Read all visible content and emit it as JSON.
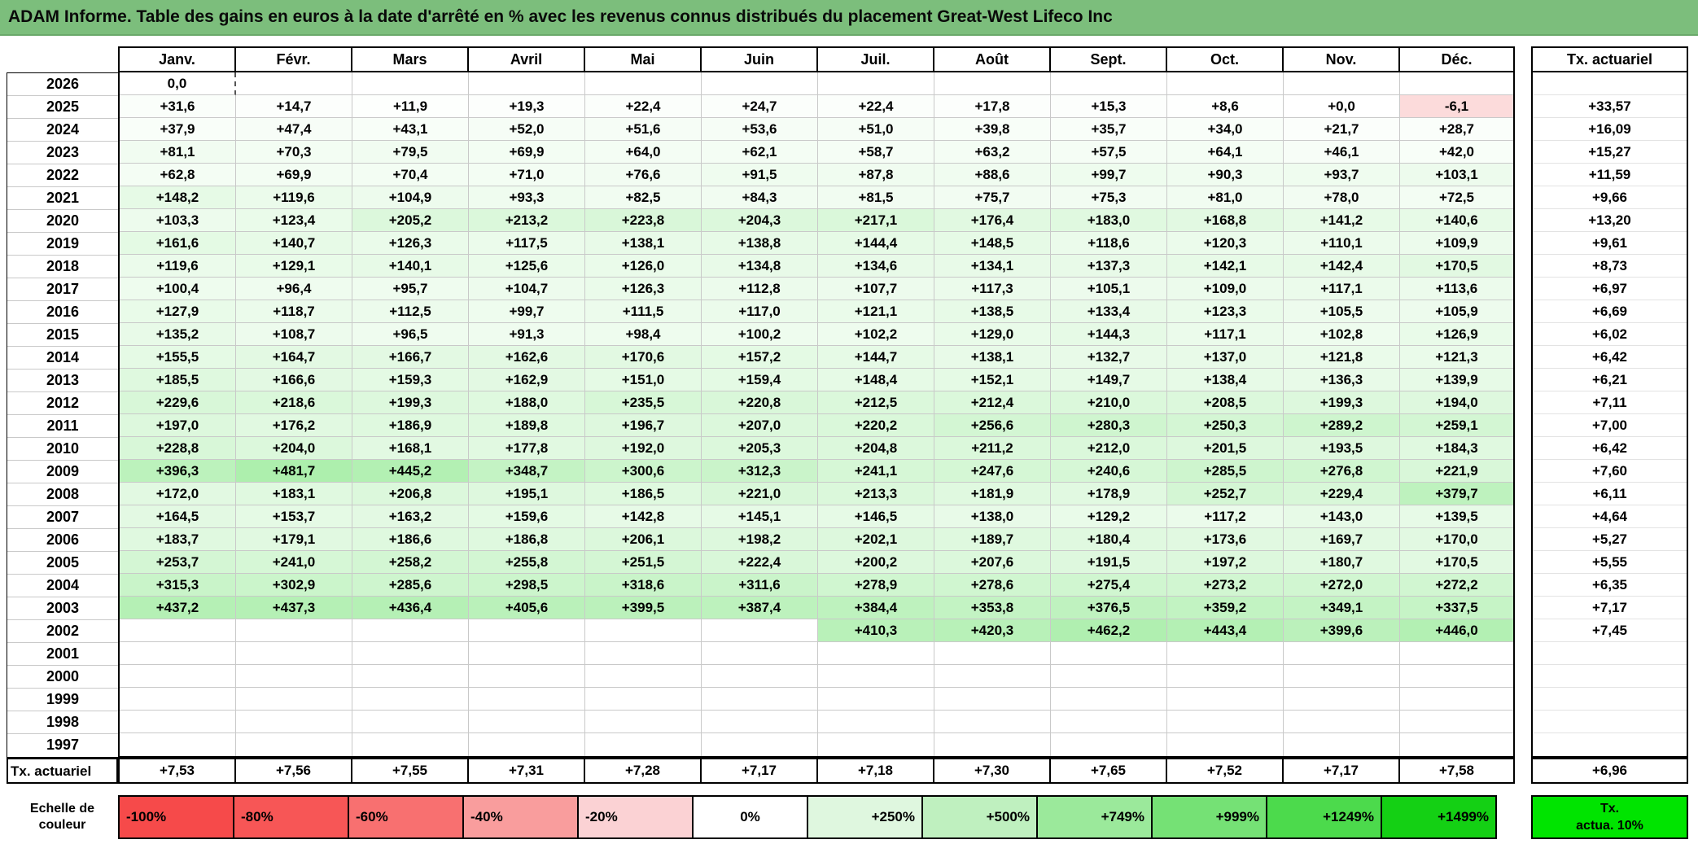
{
  "title": "ADAM Informe. Table des gains en euros à la date d'arrêté en % avec les revenus connus distribués du placement Great-West Lifeco Inc",
  "colors": {
    "title_bg": "#7CBE7C",
    "positive_max": "#00CC00",
    "negative_max": "#F25050",
    "legend_tx_bg": "#00E400"
  },
  "table": {
    "month_headers": [
      "Janv.",
      "Févr.",
      "Mars",
      "Avril",
      "Mai",
      "Juin",
      "Juil.",
      "Août",
      "Sept.",
      "Oct.",
      "Nov.",
      "Déc."
    ],
    "tx_header": "Tx. actuariel",
    "marquee": {
      "row": "2026",
      "col": 0
    },
    "rows": [
      {
        "year": "2026",
        "cells": [
          "0,0",
          "",
          "",
          "",
          "",
          "",
          "",
          "",
          "",
          "",
          "",
          ""
        ],
        "tx": ""
      },
      {
        "year": "2025",
        "cells": [
          "+31,6",
          "+14,7",
          "+11,9",
          "+19,3",
          "+22,4",
          "+24,7",
          "+22,4",
          "+17,8",
          "+15,3",
          "+8,6",
          "+0,0",
          "-6,1"
        ],
        "tx": "+33,57"
      },
      {
        "year": "2024",
        "cells": [
          "+37,9",
          "+47,4",
          "+43,1",
          "+52,0",
          "+51,6",
          "+53,6",
          "+51,0",
          "+39,8",
          "+35,7",
          "+34,0",
          "+21,7",
          "+28,7"
        ],
        "tx": "+16,09"
      },
      {
        "year": "2023",
        "cells": [
          "+81,1",
          "+70,3",
          "+79,5",
          "+69,9",
          "+64,0",
          "+62,1",
          "+58,7",
          "+63,2",
          "+57,5",
          "+64,1",
          "+46,1",
          "+42,0"
        ],
        "tx": "+15,27"
      },
      {
        "year": "2022",
        "cells": [
          "+62,8",
          "+69,9",
          "+70,4",
          "+71,0",
          "+76,6",
          "+91,5",
          "+87,8",
          "+88,6",
          "+99,7",
          "+90,3",
          "+93,7",
          "+103,1"
        ],
        "tx": "+11,59"
      },
      {
        "year": "2021",
        "cells": [
          "+148,2",
          "+119,6",
          "+104,9",
          "+93,3",
          "+82,5",
          "+84,3",
          "+81,5",
          "+75,7",
          "+75,3",
          "+81,0",
          "+78,0",
          "+72,5"
        ],
        "tx": "+9,66"
      },
      {
        "year": "2020",
        "cells": [
          "+103,3",
          "+123,4",
          "+205,2",
          "+213,2",
          "+223,8",
          "+204,3",
          "+217,1",
          "+176,4",
          "+183,0",
          "+168,8",
          "+141,2",
          "+140,6"
        ],
        "tx": "+13,20"
      },
      {
        "year": "2019",
        "cells": [
          "+161,6",
          "+140,7",
          "+126,3",
          "+117,5",
          "+138,1",
          "+138,8",
          "+144,4",
          "+148,5",
          "+118,6",
          "+120,3",
          "+110,1",
          "+109,9"
        ],
        "tx": "+9,61"
      },
      {
        "year": "2018",
        "cells": [
          "+119,6",
          "+129,1",
          "+140,1",
          "+125,6",
          "+126,0",
          "+134,8",
          "+134,6",
          "+134,1",
          "+137,3",
          "+142,1",
          "+142,4",
          "+170,5"
        ],
        "tx": "+8,73"
      },
      {
        "year": "2017",
        "cells": [
          "+100,4",
          "+96,4",
          "+95,7",
          "+104,7",
          "+126,3",
          "+112,8",
          "+107,7",
          "+117,3",
          "+105,1",
          "+109,0",
          "+117,1",
          "+113,6"
        ],
        "tx": "+6,97"
      },
      {
        "year": "2016",
        "cells": [
          "+127,9",
          "+118,7",
          "+112,5",
          "+99,7",
          "+111,5",
          "+117,0",
          "+121,1",
          "+138,5",
          "+133,4",
          "+123,3",
          "+105,5",
          "+105,9"
        ],
        "tx": "+6,69"
      },
      {
        "year": "2015",
        "cells": [
          "+135,2",
          "+108,7",
          "+96,5",
          "+91,3",
          "+98,4",
          "+100,2",
          "+102,2",
          "+129,0",
          "+144,3",
          "+117,1",
          "+102,8",
          "+126,9"
        ],
        "tx": "+6,02"
      },
      {
        "year": "2014",
        "cells": [
          "+155,5",
          "+164,7",
          "+166,7",
          "+162,6",
          "+170,6",
          "+157,2",
          "+144,7",
          "+138,1",
          "+132,7",
          "+137,0",
          "+121,8",
          "+121,3"
        ],
        "tx": "+6,42"
      },
      {
        "year": "2013",
        "cells": [
          "+185,5",
          "+166,6",
          "+159,3",
          "+162,9",
          "+151,0",
          "+159,4",
          "+148,4",
          "+152,1",
          "+149,7",
          "+138,4",
          "+136,3",
          "+139,9"
        ],
        "tx": "+6,21"
      },
      {
        "year": "2012",
        "cells": [
          "+229,6",
          "+218,6",
          "+199,3",
          "+188,0",
          "+235,5",
          "+220,8",
          "+212,5",
          "+212,4",
          "+210,0",
          "+208,5",
          "+199,3",
          "+194,0"
        ],
        "tx": "+7,11"
      },
      {
        "year": "2011",
        "cells": [
          "+197,0",
          "+176,2",
          "+186,9",
          "+189,8",
          "+196,7",
          "+207,0",
          "+220,2",
          "+256,6",
          "+280,3",
          "+250,3",
          "+289,2",
          "+259,1"
        ],
        "tx": "+7,00"
      },
      {
        "year": "2010",
        "cells": [
          "+228,8",
          "+204,0",
          "+168,1",
          "+177,8",
          "+192,0",
          "+205,3",
          "+204,8",
          "+211,2",
          "+212,0",
          "+201,5",
          "+193,5",
          "+184,3"
        ],
        "tx": "+6,42"
      },
      {
        "year": "2009",
        "cells": [
          "+396,3",
          "+481,7",
          "+445,2",
          "+348,7",
          "+300,6",
          "+312,3",
          "+241,1",
          "+247,6",
          "+240,6",
          "+285,5",
          "+276,8",
          "+221,9"
        ],
        "tx": "+7,60"
      },
      {
        "year": "2008",
        "cells": [
          "+172,0",
          "+183,1",
          "+206,8",
          "+195,1",
          "+186,5",
          "+221,0",
          "+213,3",
          "+181,9",
          "+178,9",
          "+252,7",
          "+229,4",
          "+379,7"
        ],
        "tx": "+6,11"
      },
      {
        "year": "2007",
        "cells": [
          "+164,5",
          "+153,7",
          "+163,2",
          "+159,6",
          "+142,8",
          "+145,1",
          "+146,5",
          "+138,0",
          "+129,2",
          "+117,2",
          "+143,0",
          "+139,5"
        ],
        "tx": "+4,64"
      },
      {
        "year": "2006",
        "cells": [
          "+183,7",
          "+179,1",
          "+186,6",
          "+186,8",
          "+206,1",
          "+198,2",
          "+202,1",
          "+189,7",
          "+180,4",
          "+173,6",
          "+169,7",
          "+170,0"
        ],
        "tx": "+5,27"
      },
      {
        "year": "2005",
        "cells": [
          "+253,7",
          "+241,0",
          "+258,2",
          "+255,8",
          "+251,5",
          "+222,4",
          "+200,2",
          "+207,6",
          "+191,5",
          "+197,2",
          "+180,7",
          "+170,5"
        ],
        "tx": "+5,55"
      },
      {
        "year": "2004",
        "cells": [
          "+315,3",
          "+302,9",
          "+285,6",
          "+298,5",
          "+318,6",
          "+311,6",
          "+278,9",
          "+278,6",
          "+275,4",
          "+273,2",
          "+272,0",
          "+272,2"
        ],
        "tx": "+6,35"
      },
      {
        "year": "2003",
        "cells": [
          "+437,2",
          "+437,3",
          "+436,4",
          "+405,6",
          "+399,5",
          "+387,4",
          "+384,4",
          "+353,8",
          "+376,5",
          "+359,2",
          "+349,1",
          "+337,5"
        ],
        "tx": "+7,17"
      },
      {
        "year": "2002",
        "cells": [
          "",
          "",
          "",
          "",
          "",
          "",
          "+410,3",
          "+420,3",
          "+462,2",
          "+443,4",
          "+399,6",
          "+446,0"
        ],
        "tx": "+7,45"
      },
      {
        "year": "2001",
        "cells": [
          "",
          "",
          "",
          "",
          "",
          "",
          "",
          "",
          "",
          "",
          "",
          ""
        ],
        "tx": ""
      },
      {
        "year": "2000",
        "cells": [
          "",
          "",
          "",
          "",
          "",
          "",
          "",
          "",
          "",
          "",
          "",
          ""
        ],
        "tx": ""
      },
      {
        "year": "1999",
        "cells": [
          "",
          "",
          "",
          "",
          "",
          "",
          "",
          "",
          "",
          "",
          "",
          ""
        ],
        "tx": ""
      },
      {
        "year": "1998",
        "cells": [
          "",
          "",
          "",
          "",
          "",
          "",
          "",
          "",
          "",
          "",
          "",
          ""
        ],
        "tx": ""
      },
      {
        "year": "1997",
        "cells": [
          "",
          "",
          "",
          "",
          "",
          "",
          "",
          "",
          "",
          "",
          "",
          ""
        ],
        "tx": ""
      }
    ],
    "footer": {
      "label": "Tx. actuariel",
      "cells": [
        "+7,53",
        "+7,56",
        "+7,55",
        "+7,31",
        "+7,28",
        "+7,17",
        "+7,18",
        "+7,30",
        "+7,65",
        "+7,52",
        "+7,17",
        "+7,58"
      ],
      "tx": "+6,96"
    }
  },
  "legend": {
    "label_line1": "Echelle de",
    "label_line2": "couleur",
    "stops": [
      {
        "label": "-100%",
        "color": "#F64A4A",
        "align": "left"
      },
      {
        "label": "-80%",
        "color": "#F75656",
        "align": "left"
      },
      {
        "label": "-60%",
        "color": "#F87070",
        "align": "left"
      },
      {
        "label": "-40%",
        "color": "#F99D9D",
        "align": "left"
      },
      {
        "label": "-20%",
        "color": "#FBD2D4",
        "align": "left"
      },
      {
        "label": "0%",
        "color": "#FFFFFF",
        "align": "center"
      },
      {
        "label": "+250%",
        "color": "#DFF7DF",
        "align": "right"
      },
      {
        "label": "+500%",
        "color": "#BFF0BF",
        "align": "right"
      },
      {
        "label": "+749%",
        "color": "#9BE99B",
        "align": "right"
      },
      {
        "label": "+999%",
        "color": "#75E175",
        "align": "right"
      },
      {
        "label": "+1249%",
        "color": "#4CDA4C",
        "align": "right"
      },
      {
        "label": "+1499%",
        "color": "#14D014",
        "align": "right"
      }
    ],
    "tx_line1": "Tx.",
    "tx_line2": "actua. 10%"
  }
}
